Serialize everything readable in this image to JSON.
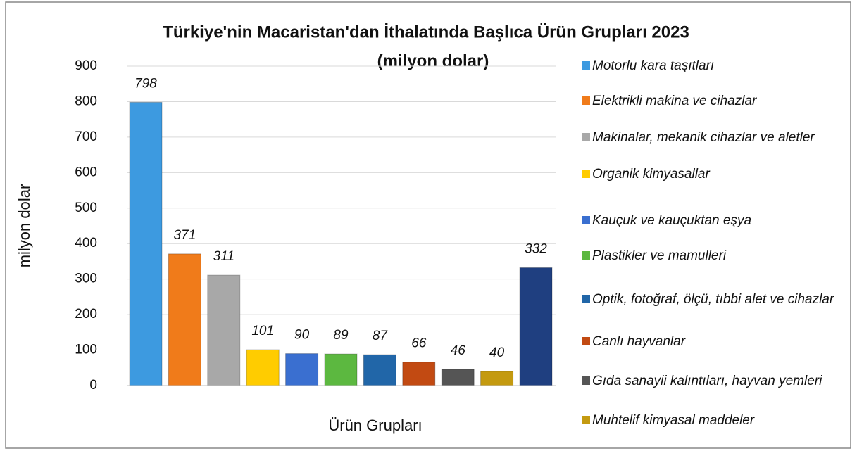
{
  "chart_data": {
    "type": "bar",
    "title": [
      "Türkiye'nin Macaristan'dan İthalatında Başlıca Ürün Grupları 2023",
      "(milyon dolar)"
    ],
    "x_label": "Ürün Grupları",
    "y_label": "milyon dolar",
    "categories": [
      "Motorlu kara taşıtları",
      "Elektrikli makina ve cihazlar",
      "Makinalar, mekanik cihazlar ve aletler",
      "Organik kimyasallar",
      "Kauçuk ve kauçuktan eşya",
      "Plastikler ve mamulleri",
      "Optik, fotoğraf, ölçü, tıbbi alet ve cihazlar",
      "Canlı hayvanlar",
      "Gıda sanayii kalıntıları, hayvan yemleri",
      "Muhtelif kimyasal maddeler",
      null
    ],
    "values": [
      798,
      371,
      311,
      101,
      90,
      89,
      87,
      66,
      46,
      40,
      332
    ],
    "colors": [
      "#3d9ae0",
      "#f07b1a",
      "#a8a8a8",
      "#ffcc00",
      "#3a6fd0",
      "#5cb840",
      "#2166a8",
      "#c24a12",
      "#555555",
      "#c49a10",
      "#1f3f80"
    ],
    "ylim": [
      0,
      900
    ],
    "yticks": [
      0,
      100,
      200,
      300,
      400,
      500,
      600,
      700,
      800,
      900
    ],
    "grid": true
  }
}
